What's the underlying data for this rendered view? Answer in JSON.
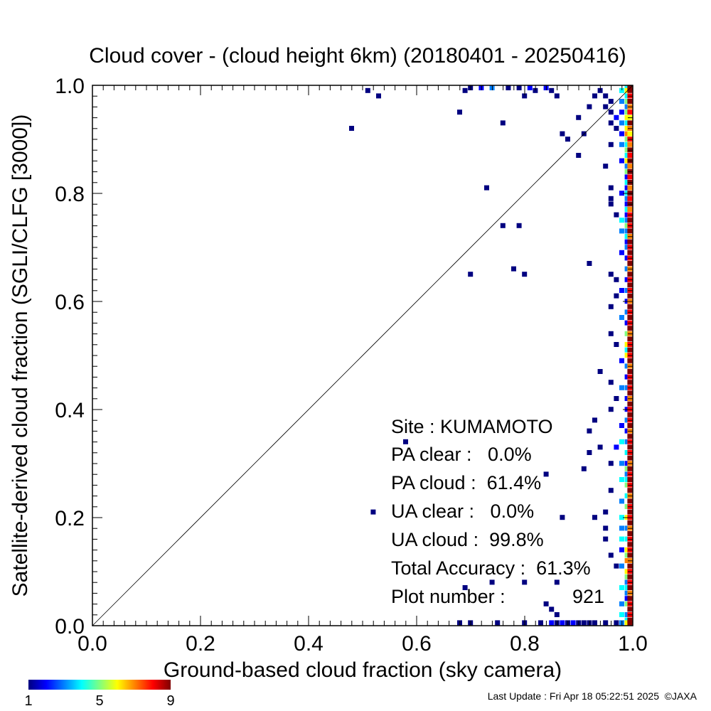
{
  "chart_data": {
    "type": "heatmap",
    "title": "Cloud cover - (cloud height 6km)  (20180401 - 20250416)",
    "xlabel": "Ground-based cloud fraction (sky camera)",
    "ylabel": "Satellite-derived cloud fraction (SGLI/CLFG [3000])",
    "xlim": [
      0.0,
      1.0
    ],
    "ylim": [
      0.0,
      1.0
    ],
    "xticks": [
      "0.0",
      "0.2",
      "0.4",
      "0.6",
      "0.8",
      "1.0"
    ],
    "yticks": [
      "0.0",
      "0.2",
      "0.4",
      "0.6",
      "0.8",
      "1.0"
    ],
    "grid": false,
    "diagonal": "y = x",
    "bin_size": 0.01,
    "colorbar": {
      "min": 1,
      "max": 9,
      "labels": [
        "1",
        "5",
        "9"
      ]
    },
    "cells": [
      [
        0.51,
        0.99,
        1
      ],
      [
        0.53,
        0.98,
        1
      ],
      [
        0.48,
        0.92,
        1
      ],
      [
        0.68,
        0.95,
        1
      ],
      [
        0.69,
        0.99,
        1
      ],
      [
        0.7,
        1.0,
        1
      ],
      [
        0.73,
        0.81,
        1
      ],
      [
        0.76,
        0.93,
        1
      ],
      [
        0.76,
        0.74,
        1
      ],
      [
        0.79,
        0.74,
        1
      ],
      [
        0.7,
        0.65,
        1
      ],
      [
        0.78,
        0.66,
        1
      ],
      [
        0.8,
        0.65,
        1
      ],
      [
        0.72,
        1.0,
        2
      ],
      [
        0.74,
        1.0,
        3
      ],
      [
        0.77,
        1.0,
        1
      ],
      [
        0.79,
        1.0,
        1
      ],
      [
        0.8,
        0.98,
        1
      ],
      [
        0.81,
        1.0,
        2
      ],
      [
        0.82,
        0.99,
        1
      ],
      [
        0.84,
        1.0,
        2
      ],
      [
        0.85,
        0.99,
        1
      ],
      [
        0.86,
        0.98,
        1
      ],
      [
        0.87,
        0.91,
        1
      ],
      [
        0.88,
        0.9,
        1
      ],
      [
        0.9,
        0.87,
        1
      ],
      [
        0.91,
        0.91,
        1
      ],
      [
        0.9,
        0.94,
        1
      ],
      [
        0.92,
        0.96,
        1
      ],
      [
        0.93,
        0.98,
        1
      ],
      [
        0.94,
        0.99,
        1
      ],
      [
        0.95,
        0.98,
        1
      ],
      [
        0.96,
        0.97,
        1
      ],
      [
        0.95,
        0.96,
        1
      ],
      [
        0.96,
        0.95,
        1
      ],
      [
        0.97,
        0.94,
        2
      ],
      [
        0.96,
        0.93,
        1
      ],
      [
        0.97,
        0.92,
        1
      ],
      [
        0.96,
        0.89,
        1
      ],
      [
        0.95,
        0.85,
        1
      ],
      [
        0.96,
        0.81,
        1
      ],
      [
        0.96,
        0.79,
        1
      ],
      [
        0.96,
        0.78,
        1
      ],
      [
        0.97,
        0.76,
        1
      ],
      [
        0.92,
        0.67,
        1
      ],
      [
        0.96,
        0.65,
        1
      ],
      [
        0.97,
        0.64,
        1
      ],
      [
        0.97,
        0.61,
        1
      ],
      [
        0.96,
        0.59,
        1
      ],
      [
        0.96,
        0.54,
        1
      ],
      [
        0.97,
        0.52,
        1
      ],
      [
        0.94,
        0.47,
        1
      ],
      [
        0.96,
        0.45,
        1
      ],
      [
        0.97,
        0.42,
        1
      ],
      [
        0.96,
        0.4,
        1
      ],
      [
        0.93,
        0.38,
        1
      ],
      [
        0.92,
        0.36,
        1
      ],
      [
        0.94,
        0.33,
        1
      ],
      [
        0.92,
        0.32,
        1
      ],
      [
        0.91,
        0.29,
        1
      ],
      [
        0.97,
        0.33,
        2
      ],
      [
        0.96,
        0.3,
        1
      ],
      [
        0.96,
        0.25,
        1
      ],
      [
        0.95,
        0.21,
        1
      ],
      [
        0.93,
        0.2,
        1
      ],
      [
        0.95,
        0.18,
        1
      ],
      [
        0.95,
        0.16,
        1
      ],
      [
        0.96,
        0.13,
        1
      ],
      [
        0.97,
        0.11,
        1
      ],
      [
        0.52,
        0.21,
        1
      ],
      [
        0.58,
        0.34,
        1
      ],
      [
        0.84,
        0.28,
        1
      ],
      [
        0.87,
        0.2,
        1
      ],
      [
        0.69,
        0.07,
        1
      ],
      [
        0.74,
        0.08,
        1
      ],
      [
        0.8,
        0.08,
        1
      ],
      [
        0.86,
        0.08,
        1
      ],
      [
        0.84,
        0.04,
        1
      ],
      [
        0.85,
        0.03,
        1
      ],
      [
        0.86,
        0.02,
        1
      ],
      [
        0.68,
        0.0,
        1
      ],
      [
        0.7,
        0.0,
        1
      ],
      [
        0.75,
        0.0,
        1
      ],
      [
        0.8,
        0.0,
        1
      ],
      [
        0.83,
        0.0,
        1
      ],
      [
        0.85,
        0.0,
        2
      ],
      [
        0.86,
        0.0,
        1
      ],
      [
        0.87,
        0.0,
        2
      ],
      [
        0.88,
        0.0,
        1
      ],
      [
        0.89,
        0.0,
        2
      ],
      [
        0.9,
        0.0,
        1
      ],
      [
        0.91,
        0.0,
        1
      ],
      [
        0.92,
        0.0,
        1
      ],
      [
        0.93,
        0.0,
        1
      ],
      [
        0.95,
        0.0,
        1
      ],
      [
        0.97,
        0.0,
        1
      ],
      [
        0.98,
        0.99,
        4
      ],
      [
        0.98,
        0.97,
        3
      ],
      [
        0.98,
        0.95,
        2
      ],
      [
        0.98,
        0.93,
        3
      ],
      [
        0.98,
        0.91,
        2
      ],
      [
        0.98,
        0.89,
        3
      ],
      [
        0.98,
        0.86,
        2
      ],
      [
        0.98,
        0.8,
        2
      ],
      [
        0.98,
        0.75,
        4
      ],
      [
        0.98,
        0.73,
        3
      ],
      [
        0.98,
        0.69,
        2
      ],
      [
        0.98,
        0.62,
        2
      ],
      [
        0.98,
        0.57,
        3
      ],
      [
        0.98,
        0.49,
        2
      ],
      [
        0.98,
        0.44,
        3
      ],
      [
        0.98,
        0.37,
        2
      ],
      [
        0.98,
        0.34,
        4
      ],
      [
        0.98,
        0.3,
        3
      ],
      [
        0.98,
        0.27,
        4
      ],
      [
        0.98,
        0.23,
        3
      ],
      [
        0.98,
        0.2,
        4
      ],
      [
        0.98,
        0.18,
        3
      ],
      [
        0.98,
        0.16,
        4
      ],
      [
        0.98,
        0.14,
        2
      ],
      [
        0.98,
        0.11,
        3
      ],
      [
        0.98,
        0.07,
        4
      ],
      [
        0.98,
        0.04,
        3
      ],
      [
        0.98,
        0.02,
        4
      ],
      [
        0.98,
        0.0,
        3
      ],
      [
        0.99,
        1.0,
        4
      ],
      [
        0.99,
        0.99,
        6
      ],
      [
        0.99,
        0.98,
        4
      ],
      [
        0.99,
        0.97,
        5
      ],
      [
        0.99,
        0.96,
        3
      ],
      [
        0.99,
        0.95,
        5
      ],
      [
        0.99,
        0.94,
        6
      ],
      [
        0.99,
        0.93,
        4
      ],
      [
        0.99,
        0.92,
        6
      ],
      [
        0.99,
        0.91,
        7
      ],
      [
        0.99,
        0.9,
        5
      ],
      [
        0.99,
        0.89,
        4
      ],
      [
        0.99,
        0.88,
        5
      ],
      [
        0.99,
        0.87,
        4
      ],
      [
        0.99,
        0.86,
        6
      ],
      [
        0.99,
        0.85,
        3
      ],
      [
        0.99,
        0.84,
        5
      ],
      [
        0.99,
        0.83,
        2
      ],
      [
        0.99,
        0.82,
        4
      ],
      [
        0.99,
        0.81,
        2
      ],
      [
        0.99,
        0.8,
        4
      ],
      [
        0.99,
        0.79,
        3
      ],
      [
        0.99,
        0.78,
        2
      ],
      [
        0.99,
        0.77,
        4
      ],
      [
        0.99,
        0.76,
        2
      ],
      [
        0.99,
        0.75,
        3
      ],
      [
        0.99,
        0.74,
        5
      ],
      [
        0.99,
        0.73,
        3
      ],
      [
        0.99,
        0.72,
        4
      ],
      [
        0.99,
        0.71,
        2
      ],
      [
        0.99,
        0.7,
        3
      ],
      [
        0.99,
        0.68,
        2
      ],
      [
        0.99,
        0.66,
        3
      ],
      [
        0.99,
        0.64,
        2
      ],
      [
        0.99,
        0.62,
        3
      ],
      [
        0.99,
        0.6,
        2
      ],
      [
        0.99,
        0.58,
        3
      ],
      [
        0.99,
        0.56,
        2
      ],
      [
        0.99,
        0.54,
        5
      ],
      [
        0.99,
        0.52,
        6
      ],
      [
        0.99,
        0.51,
        4
      ],
      [
        0.99,
        0.5,
        6
      ],
      [
        0.99,
        0.48,
        3
      ],
      [
        0.99,
        0.46,
        2
      ],
      [
        0.99,
        0.44,
        3
      ],
      [
        0.99,
        0.42,
        2
      ],
      [
        0.99,
        0.4,
        2
      ],
      [
        0.99,
        0.38,
        3
      ],
      [
        0.99,
        0.36,
        2
      ],
      [
        0.99,
        0.34,
        3
      ],
      [
        0.99,
        0.32,
        4
      ],
      [
        0.99,
        0.3,
        2
      ],
      [
        0.99,
        0.29,
        5
      ],
      [
        0.99,
        0.28,
        3
      ],
      [
        0.99,
        0.27,
        4
      ],
      [
        0.99,
        0.26,
        5
      ],
      [
        0.99,
        0.24,
        4
      ],
      [
        0.99,
        0.22,
        5
      ],
      [
        0.99,
        0.2,
        6
      ],
      [
        0.99,
        0.18,
        3
      ],
      [
        0.99,
        0.16,
        4
      ],
      [
        0.99,
        0.14,
        6
      ],
      [
        0.99,
        0.13,
        5
      ],
      [
        0.99,
        0.12,
        7
      ],
      [
        0.99,
        0.1,
        6
      ],
      [
        0.99,
        0.09,
        5
      ],
      [
        0.99,
        0.08,
        3
      ],
      [
        0.99,
        0.07,
        4
      ],
      [
        0.99,
        0.06,
        3
      ],
      [
        0.99,
        0.05,
        2
      ],
      [
        0.99,
        0.04,
        5
      ],
      [
        0.99,
        0.02,
        3
      ],
      [
        0.99,
        0.01,
        4
      ],
      [
        0.99,
        0.0,
        6
      ],
      [
        1.0,
        1.0,
        9
      ],
      [
        1.0,
        0.99,
        9
      ],
      [
        1.0,
        0.98,
        8
      ],
      [
        1.0,
        0.97,
        9
      ],
      [
        1.0,
        0.96,
        7
      ],
      [
        1.0,
        0.95,
        8
      ],
      [
        1.0,
        0.94,
        6
      ],
      [
        1.0,
        0.93,
        9
      ],
      [
        1.0,
        0.92,
        7
      ],
      [
        1.0,
        0.91,
        6
      ],
      [
        1.0,
        0.9,
        8
      ],
      [
        1.0,
        0.89,
        7
      ],
      [
        1.0,
        0.88,
        9
      ],
      [
        1.0,
        0.87,
        8
      ],
      [
        1.0,
        0.86,
        9
      ],
      [
        1.0,
        0.85,
        7
      ],
      [
        1.0,
        0.84,
        9
      ],
      [
        1.0,
        0.83,
        8
      ],
      [
        1.0,
        0.82,
        9
      ],
      [
        1.0,
        0.81,
        7
      ],
      [
        1.0,
        0.8,
        9
      ],
      [
        1.0,
        0.79,
        8
      ],
      [
        1.0,
        0.78,
        9
      ],
      [
        1.0,
        0.77,
        7
      ],
      [
        1.0,
        0.76,
        8
      ],
      [
        1.0,
        0.75,
        9
      ],
      [
        1.0,
        0.74,
        8
      ],
      [
        1.0,
        0.73,
        9
      ],
      [
        1.0,
        0.72,
        7
      ],
      [
        1.0,
        0.71,
        9
      ],
      [
        1.0,
        0.7,
        8
      ],
      [
        1.0,
        0.69,
        9
      ],
      [
        1.0,
        0.68,
        8
      ],
      [
        1.0,
        0.67,
        9
      ],
      [
        1.0,
        0.66,
        7
      ],
      [
        1.0,
        0.65,
        9
      ],
      [
        1.0,
        0.64,
        8
      ],
      [
        1.0,
        0.63,
        9
      ],
      [
        1.0,
        0.62,
        8
      ],
      [
        1.0,
        0.61,
        9
      ],
      [
        1.0,
        0.6,
        7
      ],
      [
        1.0,
        0.59,
        9
      ],
      [
        1.0,
        0.58,
        8
      ],
      [
        1.0,
        0.57,
        9
      ],
      [
        1.0,
        0.56,
        8
      ],
      [
        1.0,
        0.55,
        9
      ],
      [
        1.0,
        0.54,
        7
      ],
      [
        1.0,
        0.53,
        9
      ],
      [
        1.0,
        0.52,
        8
      ],
      [
        1.0,
        0.51,
        9
      ],
      [
        1.0,
        0.5,
        8
      ],
      [
        1.0,
        0.49,
        9
      ],
      [
        1.0,
        0.48,
        7
      ],
      [
        1.0,
        0.47,
        9
      ],
      [
        1.0,
        0.46,
        8
      ],
      [
        1.0,
        0.45,
        9
      ],
      [
        1.0,
        0.44,
        8
      ],
      [
        1.0,
        0.43,
        9
      ],
      [
        1.0,
        0.42,
        7
      ],
      [
        1.0,
        0.41,
        9
      ],
      [
        1.0,
        0.4,
        8
      ],
      [
        1.0,
        0.39,
        9
      ],
      [
        1.0,
        0.38,
        8
      ],
      [
        1.0,
        0.37,
        9
      ],
      [
        1.0,
        0.36,
        7
      ],
      [
        1.0,
        0.35,
        9
      ],
      [
        1.0,
        0.34,
        8
      ],
      [
        1.0,
        0.33,
        9
      ],
      [
        1.0,
        0.32,
        8
      ],
      [
        1.0,
        0.31,
        9
      ],
      [
        1.0,
        0.3,
        7
      ],
      [
        1.0,
        0.29,
        9
      ],
      [
        1.0,
        0.28,
        8
      ],
      [
        1.0,
        0.27,
        9
      ],
      [
        1.0,
        0.26,
        8
      ],
      [
        1.0,
        0.25,
        9
      ],
      [
        1.0,
        0.24,
        7
      ],
      [
        1.0,
        0.23,
        9
      ],
      [
        1.0,
        0.22,
        8
      ],
      [
        1.0,
        0.21,
        9
      ],
      [
        1.0,
        0.2,
        8
      ],
      [
        1.0,
        0.19,
        9
      ],
      [
        1.0,
        0.18,
        7
      ],
      [
        1.0,
        0.17,
        9
      ],
      [
        1.0,
        0.16,
        8
      ],
      [
        1.0,
        0.15,
        9
      ],
      [
        1.0,
        0.14,
        8
      ],
      [
        1.0,
        0.13,
        9
      ],
      [
        1.0,
        0.12,
        7
      ],
      [
        1.0,
        0.11,
        9
      ],
      [
        1.0,
        0.1,
        8
      ],
      [
        1.0,
        0.09,
        9
      ],
      [
        1.0,
        0.08,
        8
      ],
      [
        1.0,
        0.07,
        9
      ],
      [
        1.0,
        0.06,
        7
      ],
      [
        1.0,
        0.05,
        9
      ],
      [
        1.0,
        0.04,
        8
      ],
      [
        1.0,
        0.03,
        9
      ],
      [
        1.0,
        0.02,
        8
      ],
      [
        1.0,
        0.01,
        9
      ],
      [
        1.0,
        0.0,
        9
      ]
    ]
  },
  "stats": {
    "site": "Site : KUMAMOTO",
    "pa_clear": "PA clear :   0.0%",
    "pa_cloud": "PA cloud :  61.4%",
    "ua_clear": "UA clear :   0.0%",
    "ua_cloud": "UA cloud :  99.8%",
    "total_accuracy": "Total Accuracy :  61.3%",
    "plot_number_label": "Plot number :",
    "plot_number_value": "921"
  },
  "footer": {
    "last_update": "Last Update : Fri Apr 18 05:22:51 2025",
    "copyright": "©JAXA"
  }
}
